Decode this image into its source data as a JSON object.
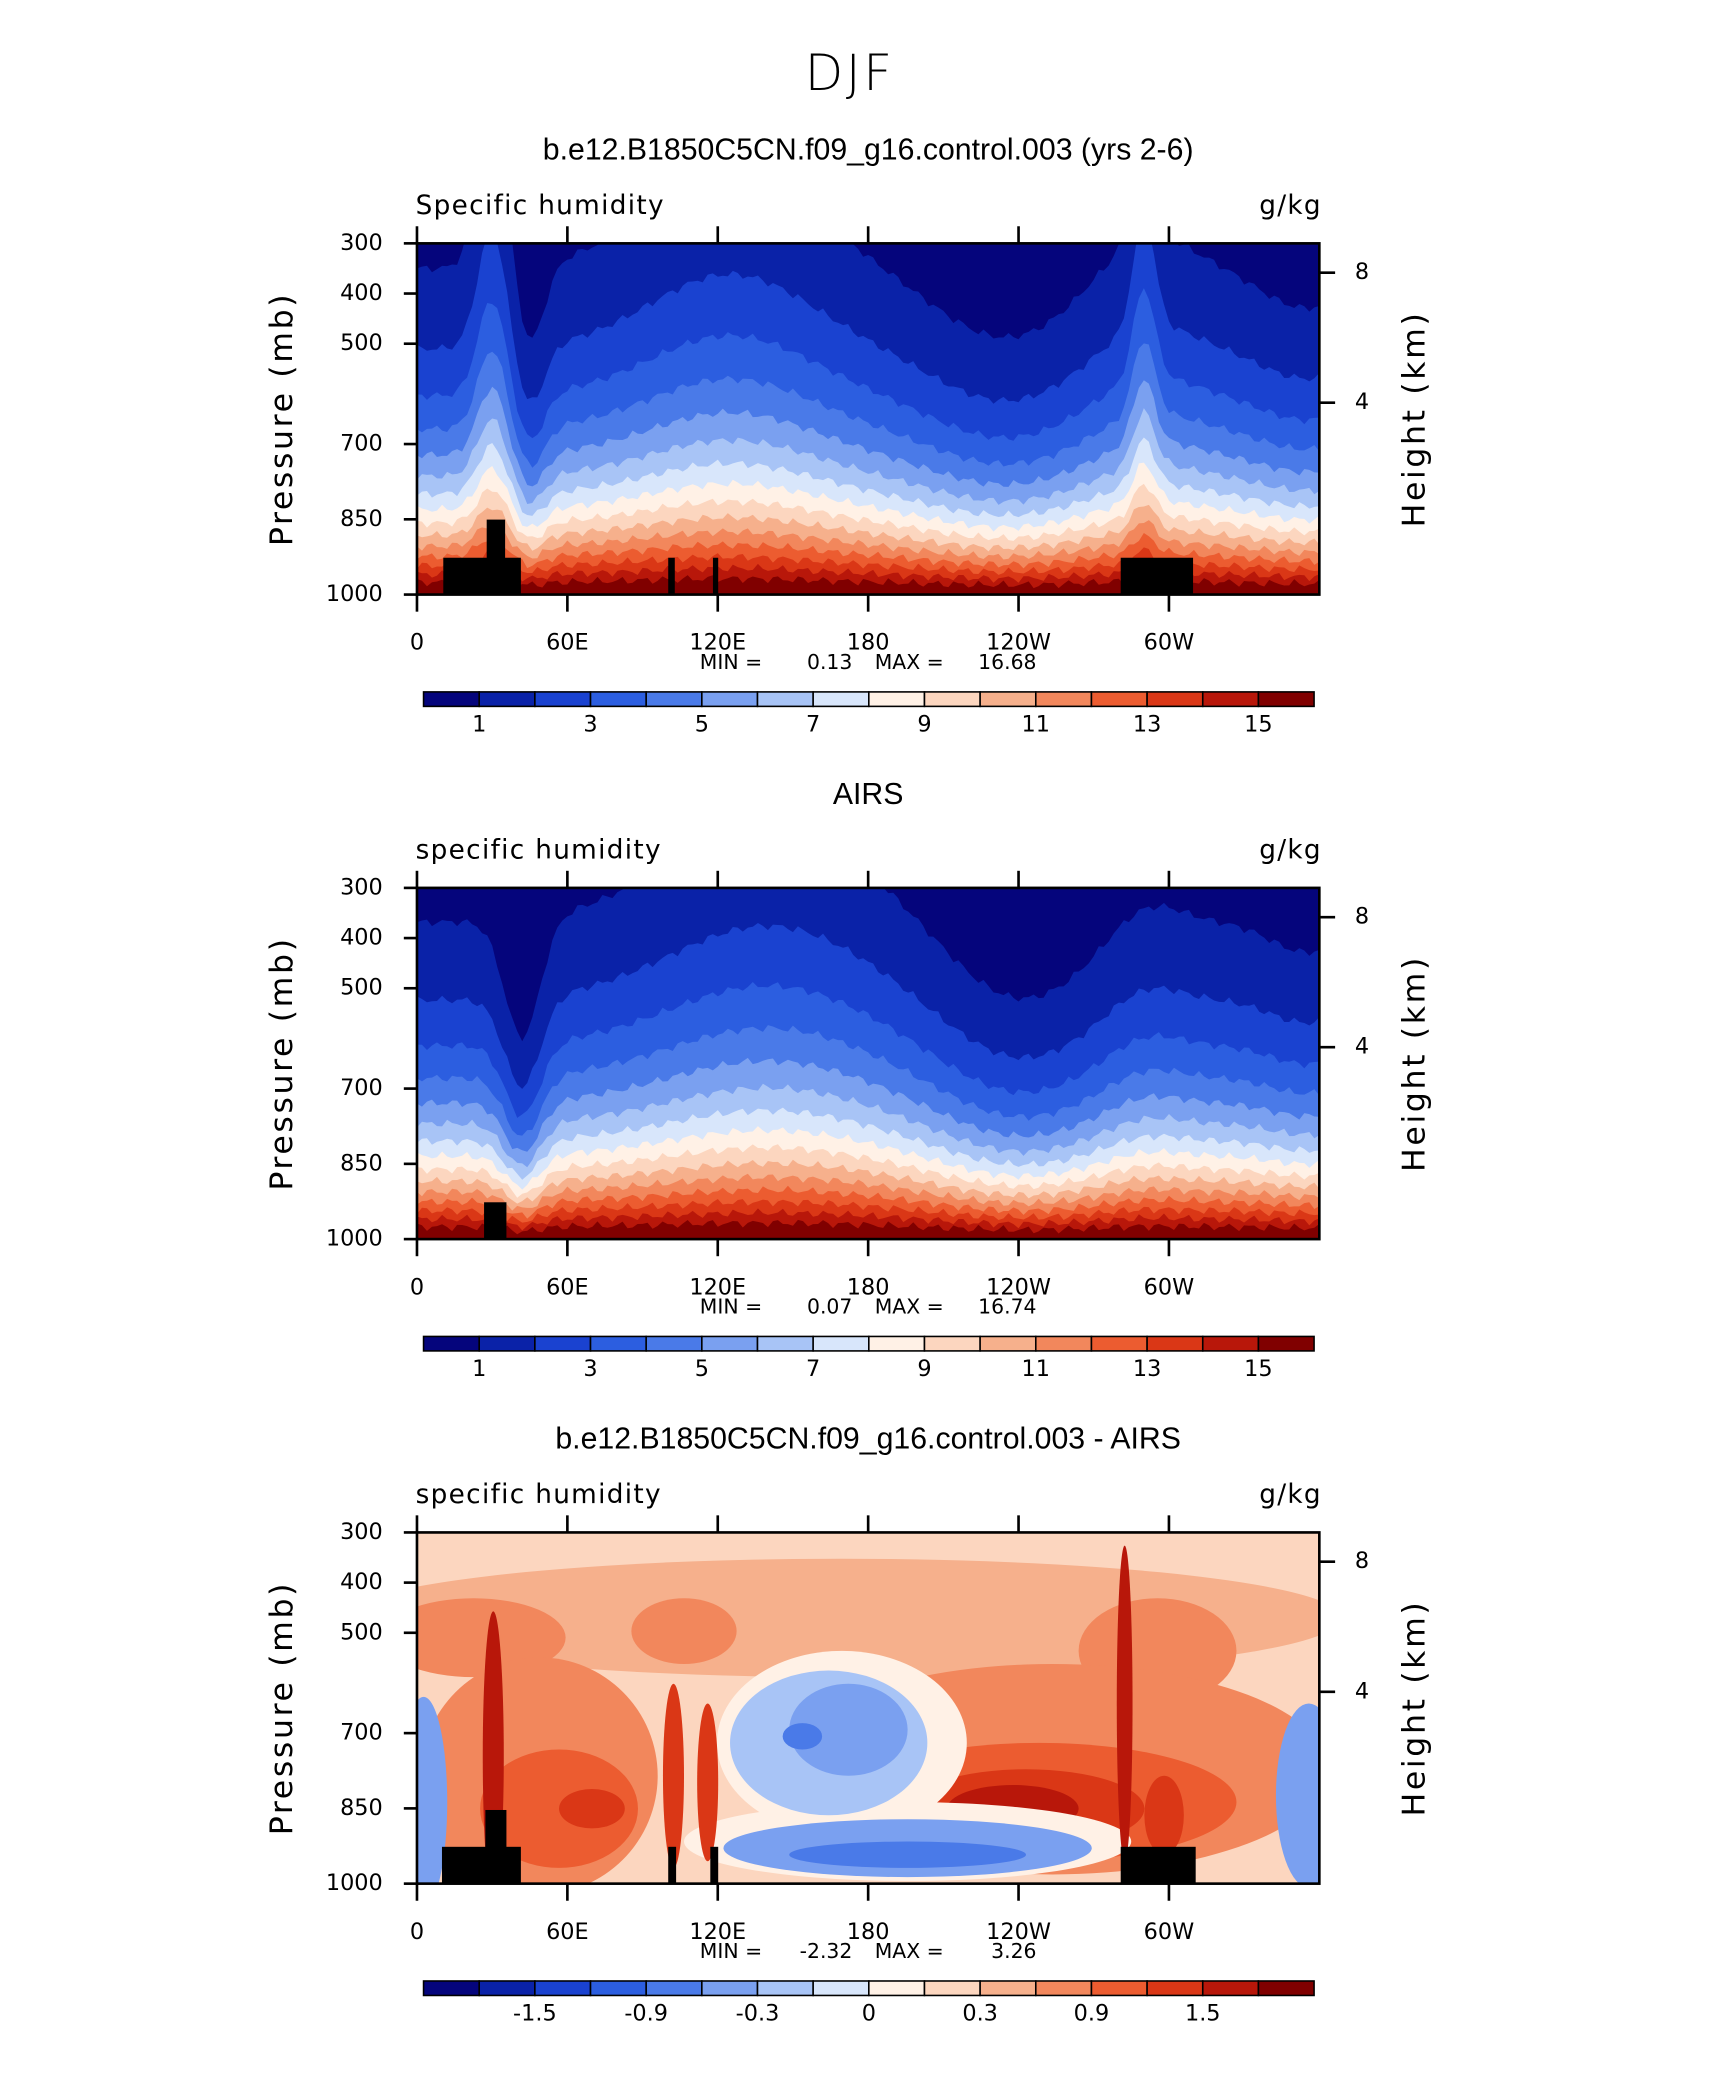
{
  "title": "DJF",
  "chart_data": [
    {
      "type": "contour",
      "title": "b.e12.B1850C5CN.f09_g16.control.003 (yrs 2-6)",
      "variable": "Specific humidity",
      "units": "g/kg",
      "ylabel": "Pressure (mb)",
      "y2label": "Height (km)",
      "xlim": [
        0,
        360
      ],
      "xticks": [
        0,
        {
          "value": 60,
          "label": "60E"
        },
        {
          "value": 120,
          "label": "120E"
        },
        180,
        {
          "value": 240,
          "label": "120W"
        },
        {
          "value": 300,
          "label": "60W"
        }
      ],
      "ylim": [
        1000,
        300
      ],
      "yticks": [
        300,
        400,
        500,
        700,
        850,
        1000
      ],
      "y2lim": [
        -1.9,
        8.9
      ],
      "y2ticks": [
        4,
        8
      ],
      "min_label": "MIN =",
      "min": 0.13,
      "max_label": "MAX =",
      "max": 16.68,
      "levels": [
        1,
        2,
        3,
        4,
        5,
        6,
        7,
        8,
        9,
        10,
        11,
        12,
        13,
        14,
        15
      ],
      "colorbar_ticks": [
        1,
        3,
        5,
        7,
        9,
        11,
        13,
        15
      ],
      "colors": [
        "#05057c",
        "#0a22a8",
        "#1a42d0",
        "#2c5ee0",
        "#4a7ae8",
        "#7aa0f0",
        "#a8c4f6",
        "#d8e6fb",
        "#fff1e6",
        "#fcd6bf",
        "#f6b08c",
        "#f2875c",
        "#ec5c30",
        "#da3716",
        "#b8170a",
        "#800000"
      ]
    },
    {
      "type": "contour",
      "title": "AIRS",
      "variable": "specific humidity",
      "units": "g/kg",
      "ylabel": "Pressure (mb)",
      "y2label": "Height (km)",
      "xlim": [
        0,
        360
      ],
      "xticks": [
        0,
        {
          "value": 60,
          "label": "60E"
        },
        {
          "value": 120,
          "label": "120E"
        },
        180,
        {
          "value": 240,
          "label": "120W"
        },
        {
          "value": 300,
          "label": "60W"
        }
      ],
      "ylim": [
        1000,
        300
      ],
      "yticks": [
        300,
        400,
        500,
        700,
        850,
        1000
      ],
      "y2lim": [
        -1.9,
        8.9
      ],
      "y2ticks": [
        4,
        8
      ],
      "min_label": "MIN =",
      "min": 0.07,
      "max_label": "MAX =",
      "max": 16.74,
      "levels": [
        1,
        2,
        3,
        4,
        5,
        6,
        7,
        8,
        9,
        10,
        11,
        12,
        13,
        14,
        15
      ],
      "colorbar_ticks": [
        1,
        3,
        5,
        7,
        9,
        11,
        13,
        15
      ],
      "colors": [
        "#05057c",
        "#0a22a8",
        "#1a42d0",
        "#2c5ee0",
        "#4a7ae8",
        "#7aa0f0",
        "#a8c4f6",
        "#d8e6fb",
        "#fff1e6",
        "#fcd6bf",
        "#f6b08c",
        "#f2875c",
        "#ec5c30",
        "#da3716",
        "#b8170a",
        "#800000"
      ]
    },
    {
      "type": "contour",
      "title": "b.e12.B1850C5CN.f09_g16.control.003 - AIRS",
      "variable": "specific humidity",
      "units": "g/kg",
      "ylabel": "Pressure (mb)",
      "y2label": "Height (km)",
      "xlim": [
        0,
        360
      ],
      "xticks": [
        0,
        {
          "value": 60,
          "label": "60E"
        },
        {
          "value": 120,
          "label": "120E"
        },
        180,
        {
          "value": 240,
          "label": "120W"
        },
        {
          "value": 300,
          "label": "60W"
        }
      ],
      "ylim": [
        1000,
        300
      ],
      "yticks": [
        300,
        400,
        500,
        700,
        850,
        1000
      ],
      "y2lim": [
        -1.9,
        8.9
      ],
      "y2ticks": [
        4,
        8
      ],
      "min_label": "MIN =",
      "min": -2.32,
      "max_label": "MAX =",
      "max": 3.26,
      "levels": [
        -1.8,
        -1.5,
        -1.2,
        -0.9,
        -0.6,
        -0.3,
        -0.1,
        0,
        0.1,
        0.3,
        0.6,
        0.9,
        1.2,
        1.5,
        1.8
      ],
      "colorbar_ticks": [
        -1.5,
        -0.9,
        -0.3,
        0,
        0.3,
        0.9,
        1.5
      ],
      "colors": [
        "#05057c",
        "#0a22a8",
        "#1a42d0",
        "#2c5ee0",
        "#4a7ae8",
        "#7aa0f0",
        "#a8c4f6",
        "#d8e6fb",
        "#fff1e6",
        "#fcd6bf",
        "#f6b08c",
        "#f2875c",
        "#ec5c30",
        "#da3716",
        "#b8170a",
        "#800000"
      ]
    }
  ]
}
